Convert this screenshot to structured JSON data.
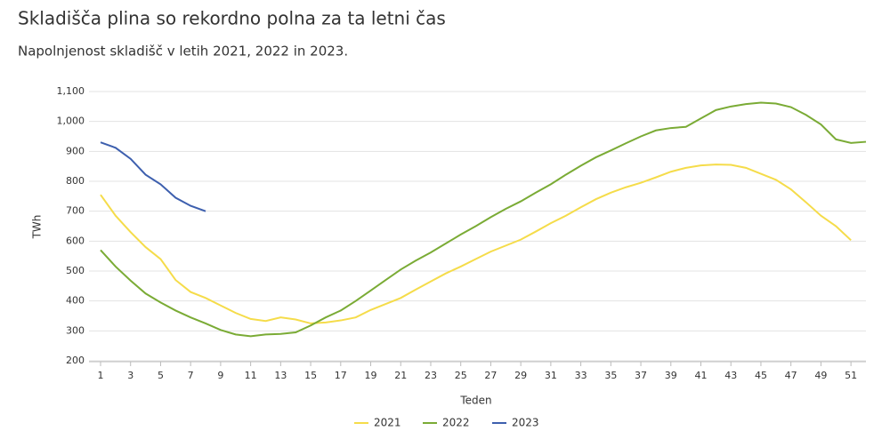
{
  "chart_data": {
    "type": "line",
    "title": "Skladišča plina so rekordno polna za ta letni čas",
    "subtitle": "Napolnjenost skladišč v letih 2021, 2022 in 2023.",
    "x_label": "Teden",
    "y_label": "TWh",
    "xlim": [
      1,
      52
    ],
    "xticks": [
      1,
      3,
      5,
      7,
      9,
      11,
      13,
      15,
      17,
      19,
      21,
      23,
      25,
      27,
      29,
      31,
      33,
      35,
      37,
      39,
      41,
      43,
      45,
      47,
      49,
      51
    ],
    "ylim": [
      200,
      1100
    ],
    "yticks": [
      200,
      300,
      400,
      500,
      600,
      700,
      800,
      900,
      {
        "value": 1000,
        "label": "1,000"
      },
      {
        "value": 1100,
        "label": "1,100"
      }
    ],
    "grid": true,
    "legend": "bottom",
    "series": [
      {
        "name": "2021",
        "color": "#f5dc4a",
        "x": [
          1,
          2,
          3,
          4,
          5,
          6,
          7,
          8,
          9,
          10,
          11,
          12,
          13,
          14,
          15,
          16,
          17,
          18,
          19,
          20,
          21,
          22,
          23,
          24,
          25,
          26,
          27,
          28,
          29,
          30,
          31,
          32,
          33,
          34,
          35,
          36,
          37,
          38,
          39,
          40,
          41,
          42,
          43,
          44,
          45,
          46,
          47,
          48,
          49,
          50,
          51
        ],
        "values": [
          755,
          685,
          630,
          580,
          540,
          470,
          430,
          410,
          385,
          360,
          340,
          333,
          345,
          338,
          325,
          328,
          335,
          345,
          370,
          390,
          410,
          438,
          465,
          492,
          515,
          540,
          565,
          585,
          605,
          632,
          660,
          685,
          713,
          740,
          762,
          780,
          795,
          813,
          832,
          845,
          853,
          856,
          855,
          845,
          825,
          805,
          773,
          730,
          685,
          650,
          603
        ]
      },
      {
        "name": "2022",
        "color": "#7aab35",
        "x": [
          1,
          2,
          3,
          4,
          5,
          6,
          7,
          8,
          9,
          10,
          11,
          12,
          13,
          14,
          15,
          16,
          17,
          18,
          19,
          20,
          21,
          22,
          23,
          24,
          25,
          26,
          27,
          28,
          29,
          30,
          31,
          32,
          33,
          34,
          35,
          36,
          37,
          38,
          39,
          40,
          41,
          42,
          43,
          44,
          45,
          46,
          47,
          48,
          49,
          50,
          51,
          52
        ],
        "values": [
          570,
          515,
          468,
          425,
          395,
          368,
          345,
          325,
          303,
          288,
          282,
          288,
          290,
          295,
          318,
          345,
          368,
          400,
          435,
          470,
          505,
          535,
          562,
          592,
          622,
          650,
          680,
          708,
          733,
          762,
          790,
          822,
          852,
          880,
          903,
          927,
          950,
          970,
          978,
          982,
          1010,
          1038,
          1050,
          1058,
          1063,
          1060,
          1048,
          1022,
          990,
          940,
          928,
          932
        ]
      },
      {
        "name": "2023",
        "color": "#3d5fae",
        "x": [
          1,
          2,
          3,
          4,
          5,
          6,
          7,
          8
        ],
        "values": [
          930,
          912,
          875,
          822,
          790,
          745,
          718,
          700
        ]
      }
    ]
  }
}
